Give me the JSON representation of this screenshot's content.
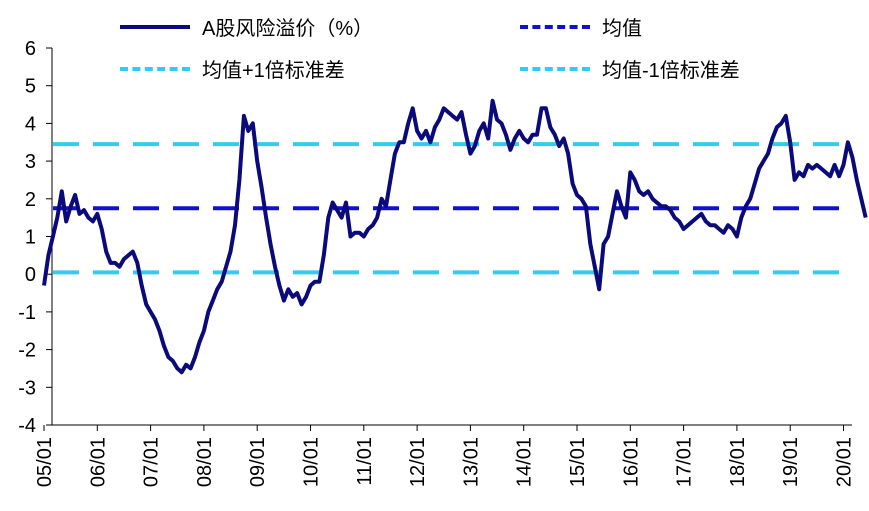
{
  "chart_data": {
    "type": "line",
    "title": "",
    "xlabel": "",
    "ylabel": "",
    "ylim": [
      -4,
      6
    ],
    "yticks": [
      -4,
      -3,
      -2,
      -1,
      0,
      1,
      2,
      3,
      4,
      5,
      6
    ],
    "x_tick_labels": [
      "05/01",
      "06/01",
      "07/01",
      "08/01",
      "09/01",
      "10/01",
      "11/01",
      "12/01",
      "13/01",
      "14/01",
      "15/01",
      "16/01",
      "17/01",
      "18/01",
      "19/01",
      "20/01"
    ],
    "grid": false,
    "legend": "top",
    "series": [
      {
        "name": "A股风险溢价（%）",
        "color": "#0a0a7a",
        "style": "solid",
        "points": [
          [
            "2005-01",
            -0.3
          ],
          [
            "2005-02",
            0.5
          ],
          [
            "2005-03",
            1.0
          ],
          [
            "2005-04",
            1.5
          ],
          [
            "2005-05",
            2.2
          ],
          [
            "2005-06",
            1.4
          ],
          [
            "2005-07",
            1.8
          ],
          [
            "2005-08",
            2.1
          ],
          [
            "2005-09",
            1.6
          ],
          [
            "2005-10",
            1.7
          ],
          [
            "2005-11",
            1.5
          ],
          [
            "2005-12",
            1.4
          ],
          [
            "2006-01",
            1.6
          ],
          [
            "2006-02",
            1.2
          ],
          [
            "2006-03",
            0.6
          ],
          [
            "2006-04",
            0.3
          ],
          [
            "2006-05",
            0.3
          ],
          [
            "2006-06",
            0.2
          ],
          [
            "2006-07",
            0.4
          ],
          [
            "2006-08",
            0.5
          ],
          [
            "2006-09",
            0.6
          ],
          [
            "2006-10",
            0.3
          ],
          [
            "2006-11",
            -0.3
          ],
          [
            "2006-12",
            -0.8
          ],
          [
            "2007-01",
            -1.0
          ],
          [
            "2007-02",
            -1.2
          ],
          [
            "2007-03",
            -1.5
          ],
          [
            "2007-04",
            -1.9
          ],
          [
            "2007-05",
            -2.2
          ],
          [
            "2007-06",
            -2.3
          ],
          [
            "2007-07",
            -2.5
          ],
          [
            "2007-08",
            -2.6
          ],
          [
            "2007-09",
            -2.4
          ],
          [
            "2007-10",
            -2.5
          ],
          [
            "2007-11",
            -2.2
          ],
          [
            "2007-12",
            -1.8
          ],
          [
            "2008-01",
            -1.5
          ],
          [
            "2008-02",
            -1.0
          ],
          [
            "2008-03",
            -0.7
          ],
          [
            "2008-04",
            -0.4
          ],
          [
            "2008-05",
            -0.2
          ],
          [
            "2008-06",
            0.2
          ],
          [
            "2008-07",
            0.6
          ],
          [
            "2008-08",
            1.3
          ],
          [
            "2008-09",
            2.5
          ],
          [
            "2008-10",
            4.2
          ],
          [
            "2008-11",
            3.8
          ],
          [
            "2008-12",
            4.0
          ],
          [
            "2009-01",
            3.0
          ],
          [
            "2009-02",
            2.3
          ],
          [
            "2009-03",
            1.5
          ],
          [
            "2009-04",
            0.8
          ],
          [
            "2009-05",
            0.2
          ],
          [
            "2009-06",
            -0.3
          ],
          [
            "2009-07",
            -0.7
          ],
          [
            "2009-08",
            -0.4
          ],
          [
            "2009-09",
            -0.6
          ],
          [
            "2009-10",
            -0.5
          ],
          [
            "2009-11",
            -0.8
          ],
          [
            "2009-12",
            -0.6
          ],
          [
            "2010-01",
            -0.3
          ],
          [
            "2010-02",
            -0.2
          ],
          [
            "2010-03",
            -0.2
          ],
          [
            "2010-04",
            0.5
          ],
          [
            "2010-05",
            1.5
          ],
          [
            "2010-06",
            1.9
          ],
          [
            "2010-07",
            1.7
          ],
          [
            "2010-08",
            1.5
          ],
          [
            "2010-09",
            1.9
          ],
          [
            "2010-10",
            1.0
          ],
          [
            "2010-11",
            1.1
          ],
          [
            "2010-12",
            1.1
          ],
          [
            "2011-01",
            1.0
          ],
          [
            "2011-02",
            1.2
          ],
          [
            "2011-03",
            1.3
          ],
          [
            "2011-04",
            1.5
          ],
          [
            "2011-05",
            2.0
          ],
          [
            "2011-06",
            1.8
          ],
          [
            "2011-07",
            2.5
          ],
          [
            "2011-08",
            3.2
          ],
          [
            "2011-09",
            3.5
          ],
          [
            "2011-10",
            3.5
          ],
          [
            "2011-11",
            4.0
          ],
          [
            "2011-12",
            4.4
          ],
          [
            "2012-01",
            3.8
          ],
          [
            "2012-02",
            3.6
          ],
          [
            "2012-03",
            3.8
          ],
          [
            "2012-04",
            3.5
          ],
          [
            "2012-05",
            3.9
          ],
          [
            "2012-06",
            4.1
          ],
          [
            "2012-07",
            4.4
          ],
          [
            "2012-08",
            4.3
          ],
          [
            "2012-09",
            4.2
          ],
          [
            "2012-10",
            4.1
          ],
          [
            "2012-11",
            4.3
          ],
          [
            "2012-12",
            3.7
          ],
          [
            "2013-01",
            3.2
          ],
          [
            "2013-02",
            3.4
          ],
          [
            "2013-03",
            3.8
          ],
          [
            "2013-04",
            4.0
          ],
          [
            "2013-05",
            3.6
          ],
          [
            "2013-06",
            4.6
          ],
          [
            "2013-07",
            4.1
          ],
          [
            "2013-08",
            4.0
          ],
          [
            "2013-09",
            3.7
          ],
          [
            "2013-10",
            3.3
          ],
          [
            "2013-11",
            3.6
          ],
          [
            "2013-12",
            3.8
          ],
          [
            "2014-01",
            3.6
          ],
          [
            "2014-02",
            3.5
          ],
          [
            "2014-03",
            3.7
          ],
          [
            "2014-04",
            3.7
          ],
          [
            "2014-05",
            4.4
          ],
          [
            "2014-06",
            4.4
          ],
          [
            "2014-07",
            3.9
          ],
          [
            "2014-08",
            3.7
          ],
          [
            "2014-09",
            3.4
          ],
          [
            "2014-10",
            3.6
          ],
          [
            "2014-11",
            3.2
          ],
          [
            "2014-12",
            2.4
          ],
          [
            "2015-01",
            2.1
          ],
          [
            "2015-02",
            2.0
          ],
          [
            "2015-03",
            1.8
          ],
          [
            "2015-04",
            0.8
          ],
          [
            "2015-05",
            0.2
          ],
          [
            "2015-06",
            -0.4
          ],
          [
            "2015-07",
            0.8
          ],
          [
            "2015-08",
            1.0
          ],
          [
            "2015-09",
            1.6
          ],
          [
            "2015-10",
            2.2
          ],
          [
            "2015-11",
            1.8
          ],
          [
            "2015-12",
            1.5
          ],
          [
            "2016-01",
            2.7
          ],
          [
            "2016-02",
            2.5
          ],
          [
            "2016-03",
            2.2
          ],
          [
            "2016-04",
            2.1
          ],
          [
            "2016-05",
            2.2
          ],
          [
            "2016-06",
            2.0
          ],
          [
            "2016-07",
            1.9
          ],
          [
            "2016-08",
            1.8
          ],
          [
            "2016-09",
            1.8
          ],
          [
            "2016-10",
            1.7
          ],
          [
            "2016-11",
            1.5
          ],
          [
            "2016-12",
            1.4
          ],
          [
            "2017-01",
            1.2
          ],
          [
            "2017-02",
            1.3
          ],
          [
            "2017-03",
            1.4
          ],
          [
            "2017-04",
            1.5
          ],
          [
            "2017-05",
            1.6
          ],
          [
            "2017-06",
            1.4
          ],
          [
            "2017-07",
            1.3
          ],
          [
            "2017-08",
            1.3
          ],
          [
            "2017-09",
            1.2
          ],
          [
            "2017-10",
            1.1
          ],
          [
            "2017-11",
            1.3
          ],
          [
            "2017-12",
            1.2
          ],
          [
            "2018-01",
            1.0
          ],
          [
            "2018-02",
            1.5
          ],
          [
            "2018-03",
            1.8
          ],
          [
            "2018-04",
            2.0
          ],
          [
            "2018-05",
            2.4
          ],
          [
            "2018-06",
            2.8
          ],
          [
            "2018-07",
            3.0
          ],
          [
            "2018-08",
            3.2
          ],
          [
            "2018-09",
            3.6
          ],
          [
            "2018-10",
            3.9
          ],
          [
            "2018-11",
            4.0
          ],
          [
            "2018-12",
            4.2
          ],
          [
            "2019-01",
            3.5
          ],
          [
            "2019-02",
            2.5
          ],
          [
            "2019-03",
            2.7
          ],
          [
            "2019-04",
            2.6
          ],
          [
            "2019-05",
            2.9
          ],
          [
            "2019-06",
            2.8
          ],
          [
            "2019-07",
            2.9
          ],
          [
            "2019-08",
            2.8
          ],
          [
            "2019-09",
            2.7
          ],
          [
            "2019-10",
            2.6
          ],
          [
            "2019-11",
            2.9
          ],
          [
            "2019-12",
            2.6
          ],
          [
            "2020-01",
            2.9
          ],
          [
            "2020-02",
            3.5
          ],
          [
            "2020-03",
            3.1
          ],
          [
            "2020-04",
            2.5
          ],
          [
            "2020-05",
            2.0
          ],
          [
            "2020-06",
            1.5
          ]
        ]
      },
      {
        "name": "均值",
        "color": "#1111cc",
        "style": "dashed",
        "value": 1.75
      },
      {
        "name": "均值+1倍标准差",
        "color": "#33ccee",
        "style": "dashed",
        "value": 3.45
      },
      {
        "name": "均值-1倍标准差",
        "color": "#33ccee",
        "style": "dashed",
        "value": 0.05
      }
    ]
  }
}
